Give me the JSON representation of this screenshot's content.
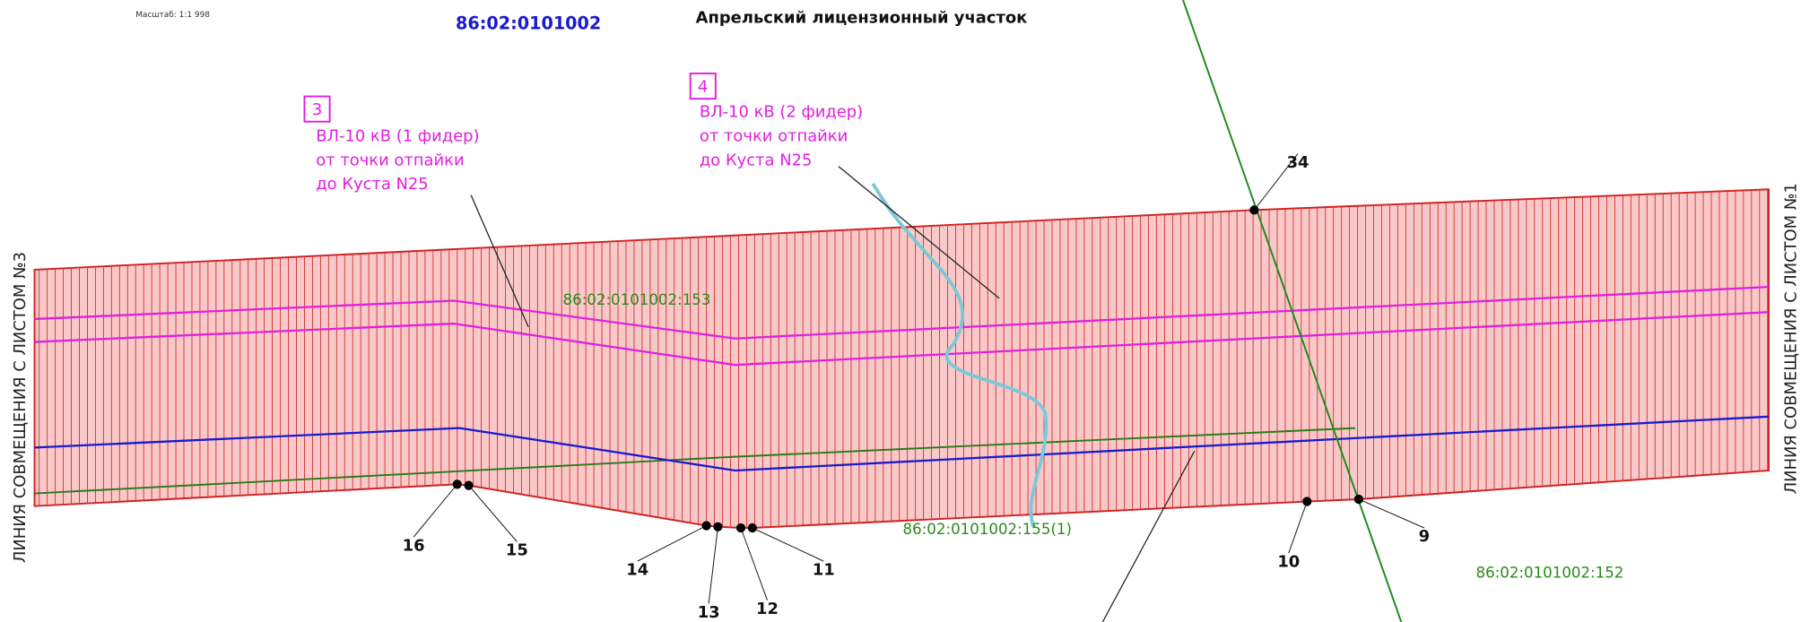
{
  "header": {
    "scale": "Масштаб: 1:1 998",
    "code": "86:02:0101002",
    "title": "Апрельский лицензионный участок"
  },
  "callouts": [
    {
      "number": "3",
      "lines": [
        "ВЛ-10 кВ (1 фидер)",
        "от точки отпайки",
        "до Куста N25"
      ]
    },
    {
      "number": "4",
      "lines": [
        "ВЛ-10 кВ (2 фидер)",
        "от точки отпайки",
        "до Куста N25"
      ]
    }
  ],
  "parcels": [
    "86:02:0101002:153",
    "86:02:0101002:155(1)",
    "86:02:0101002:152"
  ],
  "sheet_links": [
    "ЛИНИЯ СОВМЕЩЕНИЯ С ЛИСТОМ №3",
    "ЛИНИЯ СОВМЕЩЕНИЯ С ЛИСТОМ №1"
  ],
  "points": [
    "34",
    "16",
    "15",
    "14",
    "13",
    "12",
    "11",
    "10",
    "9"
  ]
}
